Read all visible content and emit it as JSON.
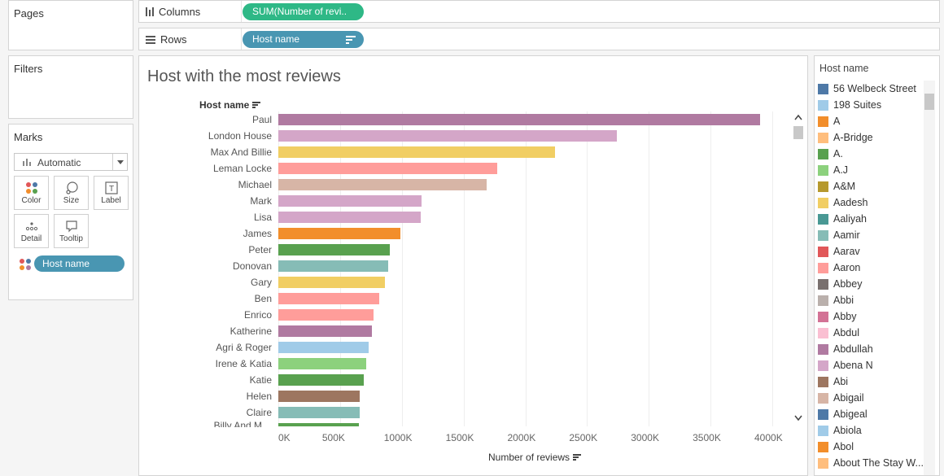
{
  "pages_panel": {
    "title": "Pages"
  },
  "filters_panel": {
    "title": "Filters"
  },
  "marks_panel": {
    "title": "Marks",
    "mark_type": "Automatic",
    "buttons": {
      "color": "Color",
      "size": "Size",
      "label": "Label",
      "detail": "Detail",
      "tooltip": "Tooltip"
    },
    "color_field": "Host name"
  },
  "shelves": {
    "columns_label": "Columns",
    "columns_pill": "SUM(Number of revi..",
    "rows_label": "Rows",
    "rows_pill": "Host name"
  },
  "chart": {
    "title": "Host with the most reviews",
    "row_header": "Host name",
    "x_axis_title": "Number of reviews",
    "truncated_last_label": "Billy And M..."
  },
  "chart_data": {
    "type": "bar",
    "title": "Host with the most reviews",
    "xlabel": "Number of reviews",
    "ylabel": "Host name",
    "orientation": "horizontal",
    "xlim": [
      0,
      4000000
    ],
    "x_ticks": [
      "0K",
      "500K",
      "1000K",
      "1500K",
      "2000K",
      "2500K",
      "3000K",
      "3500K",
      "4000K"
    ],
    "categories": [
      "Paul",
      "London House",
      "Max And Billie",
      "Leman Locke",
      "Michael",
      "Mark",
      "Lisa",
      "James",
      "Peter",
      "Donovan",
      "Gary",
      "Ben",
      "Enrico",
      "Katherine",
      "Agri & Roger",
      "Irene & Katia",
      "Katie",
      "Helen",
      "Claire"
    ],
    "values": [
      3900000,
      2740000,
      2240000,
      1770000,
      1690000,
      1160000,
      1150000,
      990000,
      900000,
      890000,
      860000,
      820000,
      770000,
      760000,
      730000,
      710000,
      690000,
      660000,
      660000
    ],
    "colors": [
      "#b07aa1",
      "#d4a6c8",
      "#f1ce63",
      "#ff9d9a",
      "#d7b5a6",
      "#d4a6c8",
      "#d4a6c8",
      "#f28e2b",
      "#59a14f",
      "#86bcb6",
      "#f1ce63",
      "#ff9d9a",
      "#ff9d9a",
      "#b07aa1",
      "#a0cbe8",
      "#8cd17d",
      "#59a14f",
      "#9d7660",
      "#86bcb6"
    ],
    "grid": true,
    "legend": "right"
  },
  "legend": {
    "title": "Host name",
    "items": [
      {
        "label": "56 Welbeck Street",
        "color": "#4e79a7"
      },
      {
        "label": "198 Suites",
        "color": "#a0cbe8"
      },
      {
        "label": "A",
        "color": "#f28e2b"
      },
      {
        "label": "A-Bridge",
        "color": "#ffbe7d"
      },
      {
        "label": "A.",
        "color": "#59a14f"
      },
      {
        "label": "A.J",
        "color": "#8cd17d"
      },
      {
        "label": "A&M",
        "color": "#b6992d"
      },
      {
        "label": "Aadesh",
        "color": "#f1ce63"
      },
      {
        "label": "Aaliyah",
        "color": "#499894"
      },
      {
        "label": "Aamir",
        "color": "#86bcb6"
      },
      {
        "label": "Aarav",
        "color": "#e15759"
      },
      {
        "label": "Aaron",
        "color": "#ff9d9a"
      },
      {
        "label": "Abbey",
        "color": "#79706e"
      },
      {
        "label": "Abbi",
        "color": "#bab0ac"
      },
      {
        "label": "Abby",
        "color": "#d37295"
      },
      {
        "label": "Abdul",
        "color": "#fabfd2"
      },
      {
        "label": "Abdullah",
        "color": "#b07aa1"
      },
      {
        "label": "Abena N",
        "color": "#d4a6c8"
      },
      {
        "label": "Abi",
        "color": "#9d7660"
      },
      {
        "label": "Abigail",
        "color": "#d7b5a6"
      },
      {
        "label": "Abigeal",
        "color": "#4e79a7"
      },
      {
        "label": "Abiola",
        "color": "#a0cbe8"
      },
      {
        "label": "Abol",
        "color": "#f28e2b"
      },
      {
        "label": "About The Stay W...",
        "color": "#ffbe7d"
      }
    ]
  }
}
